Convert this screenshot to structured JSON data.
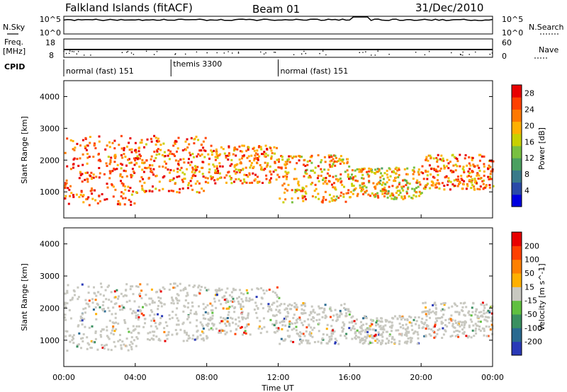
{
  "header": {
    "station": "Falkland Islands (fitACF)",
    "beam": "Beam 01",
    "date": "31/Dec/2010"
  },
  "strip_labels": {
    "nsky": "N.Sky",
    "nsky_ticks": [
      "10^5",
      "10^0"
    ],
    "nsearch": "N.Search",
    "nsearch_ticks": [
      "10^5",
      "10^0"
    ],
    "freq_line1": "Freq.",
    "freq_line2": "[MHz]",
    "freq_ticks": [
      "18",
      "8"
    ],
    "nave": "Nave",
    "nave_ticks": [
      "60",
      "0"
    ],
    "cpid": "CPID"
  },
  "cpid_segments": [
    {
      "label": "normal (fast) 151",
      "start_hour": 0
    },
    {
      "label": "themis 3300",
      "start_hour": 6
    },
    {
      "label": "normal (fast) 151",
      "start_hour": 12
    }
  ],
  "chart_data": [
    {
      "type": "heatmap",
      "title": "",
      "xlabel": "Time UT",
      "ylabel": "Slant Range [km]",
      "colorbar_label": "Power [dB]",
      "xlim": [
        0,
        24
      ],
      "ylim": [
        180,
        4500
      ],
      "x_ticks": [
        "00:00",
        "04:00",
        "08:00",
        "12:00",
        "16:00",
        "20:00",
        "00:00"
      ],
      "y_ticks": [
        1000,
        2000,
        3000,
        4000
      ],
      "colorbar_ticks": [
        "4",
        "8",
        "12",
        "16",
        "20",
        "24",
        "28"
      ],
      "colorbar_range": [
        0,
        30
      ],
      "colors": [
        "#0000e0",
        "#2a4aa8",
        "#3a7a8a",
        "#4aa060",
        "#78c040",
        "#c8d000",
        "#ffb000",
        "#ff7800",
        "#ff4000",
        "#e80000"
      ],
      "scatter_regions": [
        {
          "time_start": 0.0,
          "time_end": 4.0,
          "range_low": 600,
          "range_high": 2800,
          "value": 26
        },
        {
          "time_start": 4.0,
          "time_end": 8.0,
          "range_low": 1000,
          "range_high": 2800,
          "value": 25
        },
        {
          "time_start": 8.0,
          "time_end": 12.0,
          "range_low": 1300,
          "range_high": 2500,
          "value": 24
        },
        {
          "time_start": 12.0,
          "time_end": 16.0,
          "range_low": 700,
          "range_high": 2200,
          "value": 22
        },
        {
          "time_start": 16.0,
          "time_end": 20.0,
          "range_low": 800,
          "range_high": 1800,
          "value": 20
        },
        {
          "time_start": 20.0,
          "time_end": 24.0,
          "range_low": 1100,
          "range_high": 2200,
          "value": 24
        }
      ]
    },
    {
      "type": "heatmap",
      "title": "",
      "xlabel": "Time UT",
      "ylabel": "Slant Range [km]",
      "colorbar_label": "Velocity [m s^-1]",
      "xlim": [
        0,
        24
      ],
      "ylim": [
        180,
        4500
      ],
      "x_ticks": [
        "00:00",
        "04:00",
        "08:00",
        "12:00",
        "16:00",
        "20:00",
        "00:00"
      ],
      "y_ticks": [
        1000,
        2000,
        3000,
        4000
      ],
      "colorbar_ticks": [
        "200",
        "100",
        "50",
        "15",
        "-15",
        "-50",
        "-100",
        "-200"
      ],
      "colors": [
        "#2a3ab8",
        "#2a6a90",
        "#3a9060",
        "#60c040",
        "#c8c8c0",
        "#ffb000",
        "#ff8000",
        "#ff4000",
        "#e80000"
      ],
      "scatter_regions": [
        {
          "time_start": 0.0,
          "time_end": 4.0,
          "range_low": 700,
          "range_high": 2800,
          "value": 0
        },
        {
          "time_start": 4.0,
          "time_end": 8.0,
          "range_low": 1000,
          "range_high": 2800,
          "value": 0
        },
        {
          "time_start": 8.0,
          "time_end": 12.0,
          "range_low": 1200,
          "range_high": 2700,
          "value": 0
        },
        {
          "time_start": 12.0,
          "time_end": 16.0,
          "range_low": 900,
          "range_high": 2200,
          "value": 0
        },
        {
          "time_start": 16.0,
          "time_end": 20.0,
          "range_low": 900,
          "range_high": 1800,
          "value": 0
        },
        {
          "time_start": 20.0,
          "time_end": 24.0,
          "range_low": 1100,
          "range_high": 2200,
          "value": 0
        }
      ]
    }
  ]
}
